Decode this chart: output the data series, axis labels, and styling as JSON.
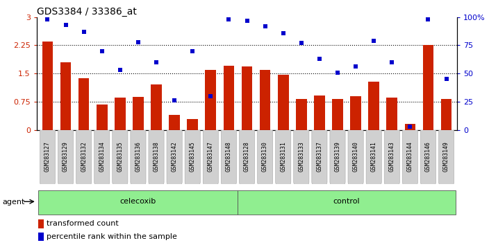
{
  "title": "GDS3384 / 33386_at",
  "samples": [
    "GSM283127",
    "GSM283129",
    "GSM283132",
    "GSM283134",
    "GSM283135",
    "GSM283136",
    "GSM283138",
    "GSM283142",
    "GSM283145",
    "GSM283147",
    "GSM283148",
    "GSM283128",
    "GSM283130",
    "GSM283131",
    "GSM283133",
    "GSM283137",
    "GSM283139",
    "GSM283140",
    "GSM283141",
    "GSM283143",
    "GSM283144",
    "GSM283146",
    "GSM283149"
  ],
  "bar_values": [
    2.35,
    1.8,
    1.38,
    0.68,
    0.85,
    0.88,
    1.2,
    0.4,
    0.28,
    1.6,
    1.7,
    1.68,
    1.6,
    1.47,
    0.82,
    0.92,
    0.82,
    0.9,
    1.28,
    0.85,
    0.15,
    2.26,
    0.82
  ],
  "percentile_values": [
    98,
    93,
    87,
    70,
    53,
    78,
    60,
    26,
    70,
    30,
    98,
    97,
    92,
    86,
    77,
    63,
    51,
    56,
    79,
    60,
    3,
    98,
    45
  ],
  "group_sizes": [
    11,
    12
  ],
  "bar_color": "#CC2200",
  "dot_color": "#0000CC",
  "green_color": "#90EE90",
  "label_bg_color": "#cccccc",
  "ylim_left": [
    0,
    3.0
  ],
  "ylim_right": [
    0,
    100
  ],
  "yticks_left": [
    0,
    0.75,
    1.5,
    2.25,
    3.0
  ],
  "yticks_right": [
    0,
    25,
    50,
    75,
    100
  ],
  "ytick_labels_left": [
    "0",
    "0.75",
    "1.5",
    "2.25",
    "3"
  ],
  "ytick_labels_right": [
    "0",
    "25",
    "50",
    "75",
    "100%"
  ],
  "hgrid_lines": [
    0.75,
    1.5,
    2.25
  ]
}
